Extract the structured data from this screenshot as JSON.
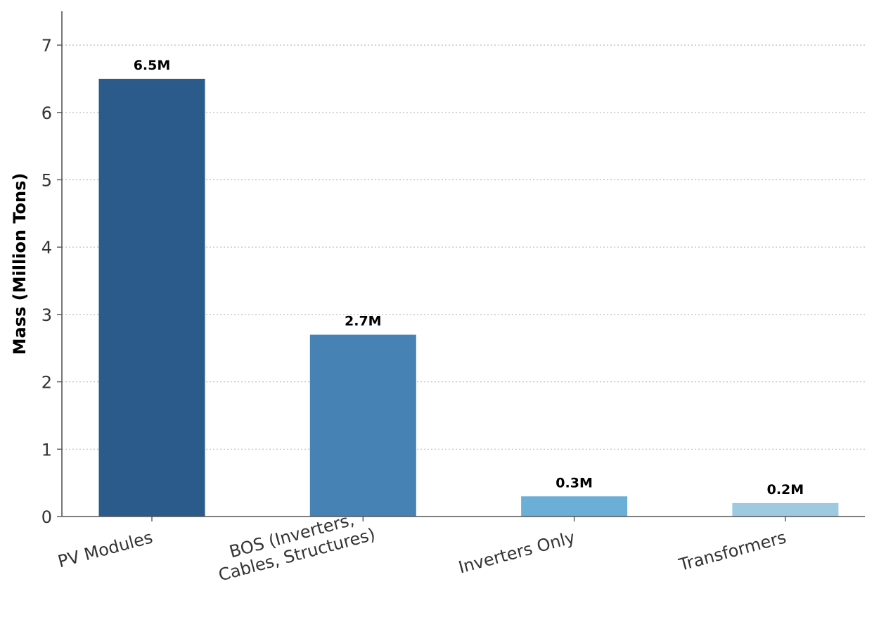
{
  "chart_data": {
    "type": "bar",
    "title": "",
    "xlabel": "",
    "ylabel": "Mass (Million Tons)",
    "ylim": [
      0,
      7.5
    ],
    "yticks": [
      0,
      1,
      2,
      3,
      4,
      5,
      6,
      7
    ],
    "grid": "horizontal dotted",
    "categories": [
      [
        "PV Modules"
      ],
      [
        "BOS (Inverters,",
        "Cables, Structures)"
      ],
      [
        "Inverters Only"
      ],
      [
        "Transformers"
      ]
    ],
    "values": [
      6.5,
      2.7,
      0.3,
      0.2
    ],
    "value_labels": [
      "6.5M",
      "2.7M",
      "0.3M",
      "0.2M"
    ],
    "colors": [
      "#2b5b8b",
      "#4682b4",
      "#6baed6",
      "#9ecae1"
    ]
  }
}
